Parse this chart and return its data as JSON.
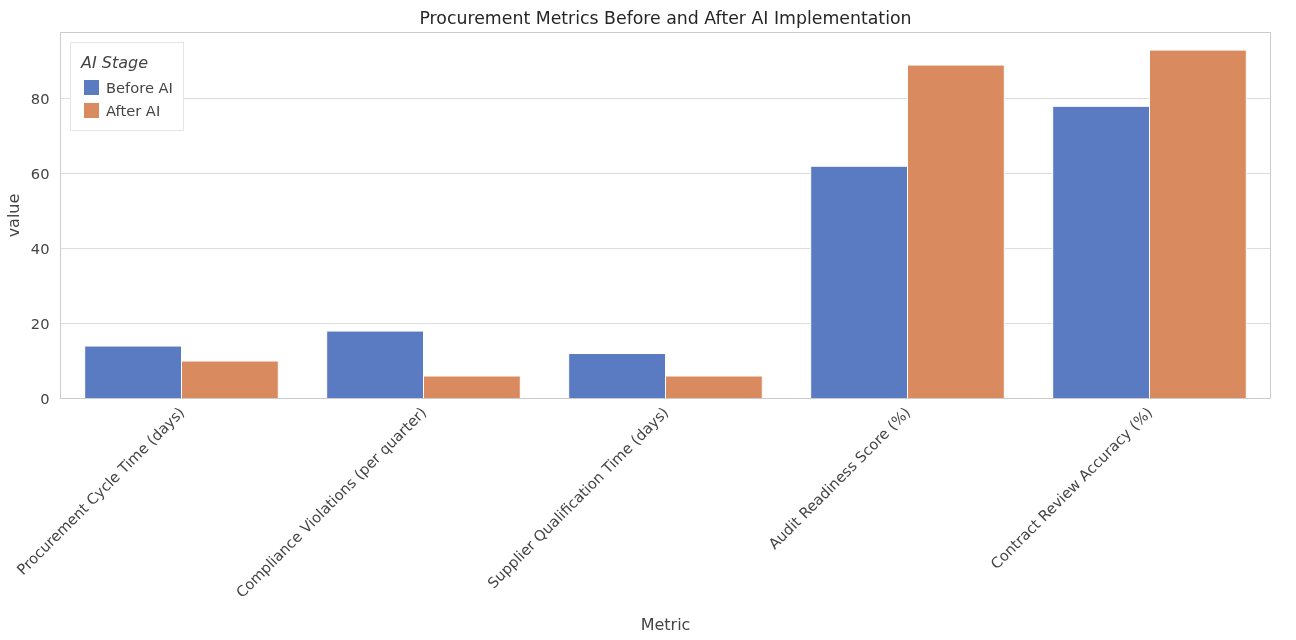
{
  "chart_data": {
    "type": "bar",
    "title": "Procurement Metrics Before and After AI Implementation",
    "xlabel": "Metric",
    "ylabel": "value",
    "legend_title": "AI Stage",
    "categories": [
      "Procurement Cycle Time (days)",
      "Compliance Violations (per quarter)",
      "Supplier Qualification Time (days)",
      "Audit Readiness Score (%)",
      "Contract Review Accuracy (%)"
    ],
    "series": [
      {
        "name": "Before AI",
        "color": "#5a7bc1",
        "values": [
          14,
          18,
          12,
          62,
          78
        ]
      },
      {
        "name": "After AI",
        "color": "#d98b5f",
        "values": [
          10,
          6,
          6,
          89,
          93
        ]
      }
    ],
    "ylim": [
      0,
      97.7
    ],
    "yticks": [
      0,
      20,
      40,
      60,
      80
    ],
    "grid": "y",
    "legend": "top left"
  }
}
